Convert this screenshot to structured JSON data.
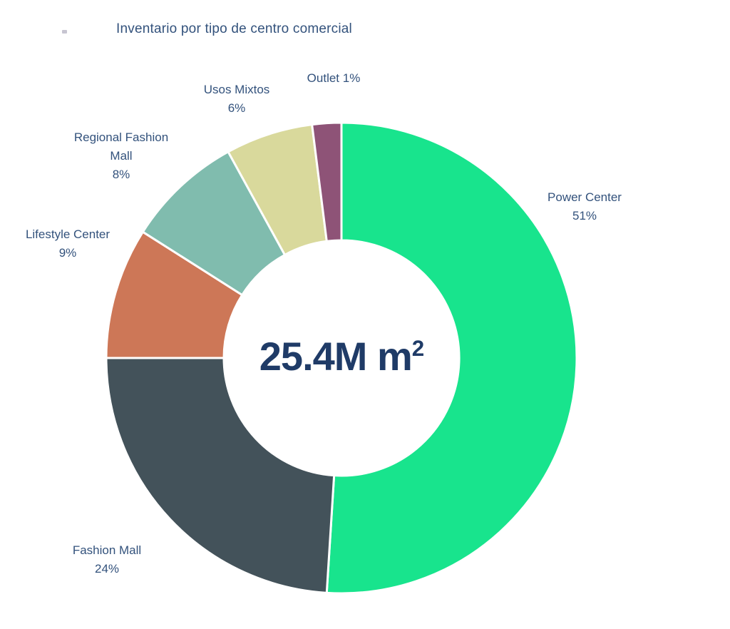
{
  "title": "Inventario por tipo de centro comercial",
  "center_label": {
    "value": "25.4M m",
    "exponent": "2"
  },
  "chart_data": {
    "type": "pie",
    "subtype": "donut",
    "title": "Inventario por tipo de centro comercial",
    "center_total": "25.4M m²",
    "categories": [
      "Power Center",
      "Fashion Mall",
      "Lifestyle Center",
      "Regional Fashion Mall",
      "Usos Mixtos",
      "Outlet"
    ],
    "values": [
      51,
      24,
      9,
      8,
      6,
      1
    ],
    "colors": [
      "#18e48d",
      "#43525a",
      "#cd7757",
      "#80bcae",
      "#d9d99c",
      "#8e5377"
    ],
    "labels": [
      {
        "name": "Power Center",
        "pct": "51%"
      },
      {
        "name": "Fashion Mall",
        "pct": "24%"
      },
      {
        "name": "Lifestyle Center",
        "pct": "9%"
      },
      {
        "name": "Regional Fashion Mall",
        "pct": "8%"
      },
      {
        "name": "Usos Mixtos",
        "pct": "6%"
      },
      {
        "name": "Outlet",
        "pct": "1%"
      }
    ],
    "start_angle_deg": 0,
    "direction": "clockwise",
    "inner_radius_ratio": 0.5,
    "legend": "none",
    "slice_border_color": "#ffffff"
  },
  "colors": {
    "title_text": "#33527c",
    "label_text": "#33527c",
    "center_text": "#1f3b67",
    "slice_border": "#ffffff",
    "background": "#ffffff"
  }
}
